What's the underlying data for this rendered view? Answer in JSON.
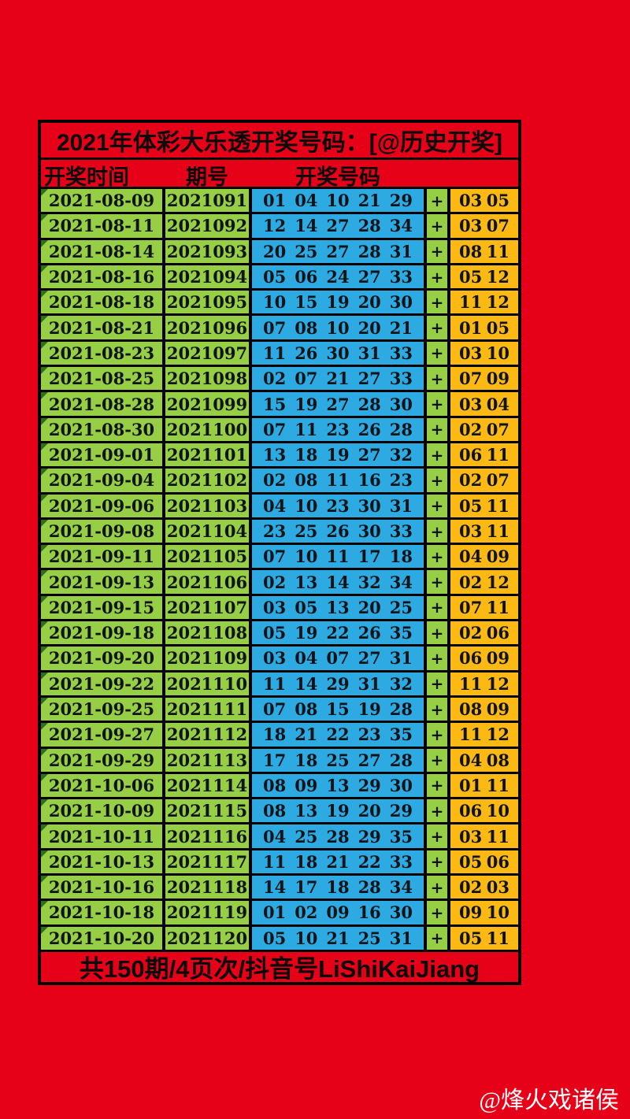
{
  "title": "2021年体彩大乐透开奖号码：[@历史开奖]",
  "columns": {
    "time": "开奖时间",
    "period": "期号",
    "numbers": "开奖号码"
  },
  "plus_sign": "+",
  "rows": [
    {
      "date": "2021-08-09",
      "period": "2021091",
      "front": [
        "01",
        "04",
        "10",
        "21",
        "29"
      ],
      "back": [
        "03",
        "05"
      ]
    },
    {
      "date": "2021-08-11",
      "period": "2021092",
      "front": [
        "12",
        "14",
        "27",
        "28",
        "34"
      ],
      "back": [
        "03",
        "07"
      ]
    },
    {
      "date": "2021-08-14",
      "period": "2021093",
      "front": [
        "20",
        "25",
        "27",
        "28",
        "31"
      ],
      "back": [
        "08",
        "11"
      ]
    },
    {
      "date": "2021-08-16",
      "period": "2021094",
      "front": [
        "05",
        "06",
        "24",
        "27",
        "33"
      ],
      "back": [
        "05",
        "12"
      ]
    },
    {
      "date": "2021-08-18",
      "period": "2021095",
      "front": [
        "10",
        "15",
        "19",
        "20",
        "30"
      ],
      "back": [
        "11",
        "12"
      ]
    },
    {
      "date": "2021-08-21",
      "period": "2021096",
      "front": [
        "07",
        "08",
        "10",
        "20",
        "21"
      ],
      "back": [
        "01",
        "05"
      ]
    },
    {
      "date": "2021-08-23",
      "period": "2021097",
      "front": [
        "11",
        "26",
        "30",
        "31",
        "33"
      ],
      "back": [
        "03",
        "10"
      ]
    },
    {
      "date": "2021-08-25",
      "period": "2021098",
      "front": [
        "02",
        "07",
        "21",
        "27",
        "33"
      ],
      "back": [
        "07",
        "09"
      ]
    },
    {
      "date": "2021-08-28",
      "period": "2021099",
      "front": [
        "15",
        "19",
        "27",
        "28",
        "30"
      ],
      "back": [
        "03",
        "04"
      ]
    },
    {
      "date": "2021-08-30",
      "period": "2021100",
      "front": [
        "07",
        "11",
        "23",
        "26",
        "28"
      ],
      "back": [
        "02",
        "07"
      ]
    },
    {
      "date": "2021-09-01",
      "period": "2021101",
      "front": [
        "13",
        "18",
        "19",
        "27",
        "32"
      ],
      "back": [
        "06",
        "11"
      ]
    },
    {
      "date": "2021-09-04",
      "period": "2021102",
      "front": [
        "02",
        "08",
        "11",
        "16",
        "23"
      ],
      "back": [
        "02",
        "07"
      ]
    },
    {
      "date": "2021-09-06",
      "period": "2021103",
      "front": [
        "04",
        "10",
        "23",
        "30",
        "31"
      ],
      "back": [
        "05",
        "11"
      ]
    },
    {
      "date": "2021-09-08",
      "period": "2021104",
      "front": [
        "23",
        "25",
        "26",
        "30",
        "33"
      ],
      "back": [
        "03",
        "11"
      ]
    },
    {
      "date": "2021-09-11",
      "period": "2021105",
      "front": [
        "07",
        "10",
        "11",
        "17",
        "18"
      ],
      "back": [
        "04",
        "09"
      ]
    },
    {
      "date": "2021-09-13",
      "period": "2021106",
      "front": [
        "02",
        "13",
        "14",
        "32",
        "34"
      ],
      "back": [
        "02",
        "12"
      ]
    },
    {
      "date": "2021-09-15",
      "period": "2021107",
      "front": [
        "03",
        "05",
        "13",
        "20",
        "25"
      ],
      "back": [
        "07",
        "11"
      ]
    },
    {
      "date": "2021-09-18",
      "period": "2021108",
      "front": [
        "05",
        "19",
        "22",
        "26",
        "35"
      ],
      "back": [
        "02",
        "06"
      ]
    },
    {
      "date": "2021-09-20",
      "period": "2021109",
      "front": [
        "03",
        "04",
        "07",
        "27",
        "31"
      ],
      "back": [
        "06",
        "09"
      ]
    },
    {
      "date": "2021-09-22",
      "period": "2021110",
      "front": [
        "11",
        "14",
        "29",
        "31",
        "32"
      ],
      "back": [
        "11",
        "12"
      ]
    },
    {
      "date": "2021-09-25",
      "period": "2021111",
      "front": [
        "07",
        "08",
        "15",
        "19",
        "28"
      ],
      "back": [
        "08",
        "09"
      ]
    },
    {
      "date": "2021-09-27",
      "period": "2021112",
      "front": [
        "18",
        "21",
        "22",
        "23",
        "35"
      ],
      "back": [
        "11",
        "12"
      ]
    },
    {
      "date": "2021-09-29",
      "period": "2021113",
      "front": [
        "17",
        "18",
        "25",
        "27",
        "28"
      ],
      "back": [
        "04",
        "08"
      ]
    },
    {
      "date": "2021-10-06",
      "period": "2021114",
      "front": [
        "08",
        "09",
        "13",
        "29",
        "30"
      ],
      "back": [
        "01",
        "11"
      ]
    },
    {
      "date": "2021-10-09",
      "period": "2021115",
      "front": [
        "08",
        "13",
        "19",
        "20",
        "29"
      ],
      "back": [
        "06",
        "10"
      ]
    },
    {
      "date": "2021-10-11",
      "period": "2021116",
      "front": [
        "04",
        "25",
        "28",
        "29",
        "35"
      ],
      "back": [
        "03",
        "11"
      ]
    },
    {
      "date": "2021-10-13",
      "period": "2021117",
      "front": [
        "11",
        "18",
        "21",
        "22",
        "33"
      ],
      "back": [
        "05",
        "06"
      ]
    },
    {
      "date": "2021-10-16",
      "period": "2021118",
      "front": [
        "14",
        "17",
        "18",
        "28",
        "34"
      ],
      "back": [
        "02",
        "03"
      ]
    },
    {
      "date": "2021-10-18",
      "period": "2021119",
      "front": [
        "01",
        "02",
        "09",
        "16",
        "30"
      ],
      "back": [
        "09",
        "10"
      ]
    },
    {
      "date": "2021-10-20",
      "period": "2021120",
      "front": [
        "05",
        "10",
        "21",
        "25",
        "31"
      ],
      "back": [
        "05",
        "11"
      ]
    }
  ],
  "footer": "共150期/4页次/抖音号LiShiKaiJiang",
  "watermark": "@烽火戏诸侯",
  "colors": {
    "background_red": "#e60018",
    "cell_green": "#96ce46",
    "cell_blue": "#2daae1",
    "cell_orange": "#fcb914",
    "border_black": "#000000",
    "text_black": "#101418",
    "watermark_white": "#ffffff",
    "corner_triangle_green": "#2e6e1e"
  }
}
